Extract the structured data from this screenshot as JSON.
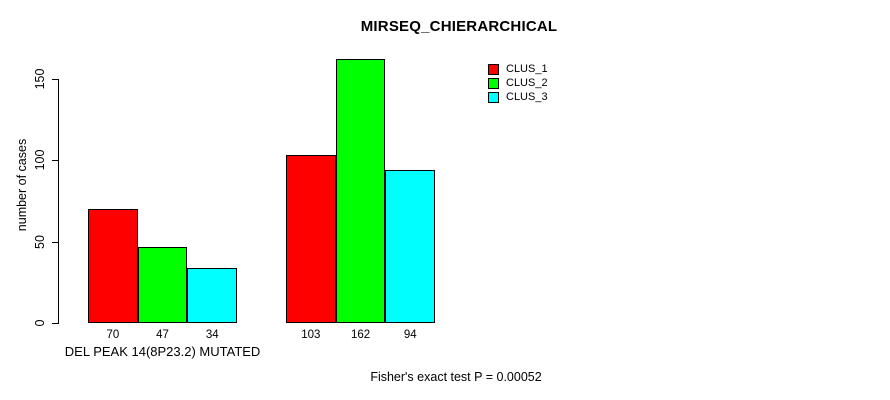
{
  "chart_data": {
    "type": "bar",
    "title": "MIRSEQ_CHIERARCHICAL",
    "xlabel": "",
    "ylabel": "number of cases",
    "categories": [
      "DEL PEAK 14(8P23.2) MUTATED",
      ""
    ],
    "series": [
      {
        "name": "CLUS_1",
        "color": "#ff0000",
        "values": [
          70,
          103
        ]
      },
      {
        "name": "CLUS_2",
        "color": "#00ff00",
        "values": [
          47,
          162
        ]
      },
      {
        "name": "CLUS_3",
        "color": "#00ffff",
        "values": [
          34,
          94
        ]
      }
    ],
    "y_ticks": [
      0,
      50,
      100,
      150
    ],
    "ylim": [
      0,
      150
    ],
    "grid": false,
    "legend_position": "top-right",
    "bar_border_color": "#000000",
    "background_color": "#ffffff",
    "annotation": "Fisher's exact test P = 0.00052"
  }
}
